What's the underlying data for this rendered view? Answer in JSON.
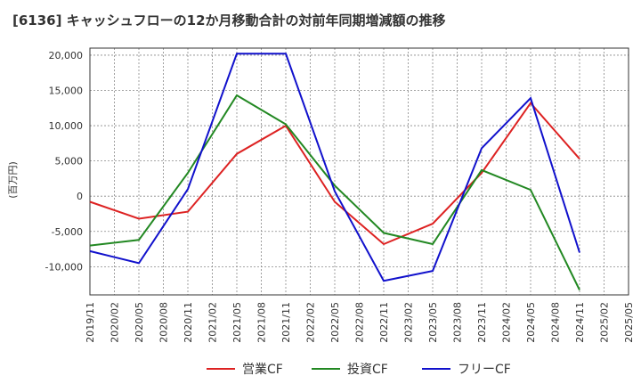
{
  "chart_data": {
    "type": "line",
    "title": "[6136]  キャッシュフローの12か月移動合計の対前年同期増減額の推移",
    "ylabel": "(百万円)",
    "xlabel": "",
    "ylim": [
      -14000,
      21000
    ],
    "yticks": [
      20000,
      15000,
      10000,
      5000,
      0,
      -5000,
      -10000
    ],
    "ytick_labels": [
      "20,000",
      "15,000",
      "10,000",
      "5,000",
      "0",
      "-5,000",
      "-10,000"
    ],
    "x_ticks": [
      "2019/11",
      "2020/02",
      "2020/05",
      "2020/08",
      "2020/11",
      "2021/02",
      "2021/05",
      "2021/08",
      "2021/11",
      "2022/02",
      "2022/05",
      "2022/08",
      "2022/11",
      "2023/02",
      "2023/05",
      "2023/08",
      "2023/11",
      "2024/02",
      "2024/05",
      "2024/08",
      "2024/11",
      "2025/02",
      "2025/05"
    ],
    "x_points": [
      "2019/11",
      "2020/05",
      "2020/11",
      "2021/05",
      "2021/11",
      "2022/05",
      "2022/11",
      "2023/05",
      "2023/11",
      "2024/05",
      "2024/11"
    ],
    "grid": true,
    "legend_position": "bottom",
    "series": [
      {
        "name": "営業CF",
        "color": "#dd2222",
        "values": [
          -800,
          -3200,
          -2200,
          6000,
          10000,
          -800,
          -6800,
          -3900,
          3300,
          13200,
          5300
        ]
      },
      {
        "name": "投資CF",
        "color": "#228822",
        "values": [
          -7000,
          -6200,
          3300,
          14300,
          10200,
          1500,
          -5200,
          -6800,
          3700,
          900,
          -13300
        ]
      },
      {
        "name": "フリーCF",
        "color": "#1111cc",
        "values": [
          -7800,
          -9500,
          1000,
          20200,
          20200,
          700,
          -12000,
          -10600,
          6800,
          13900,
          -8000
        ]
      }
    ]
  }
}
